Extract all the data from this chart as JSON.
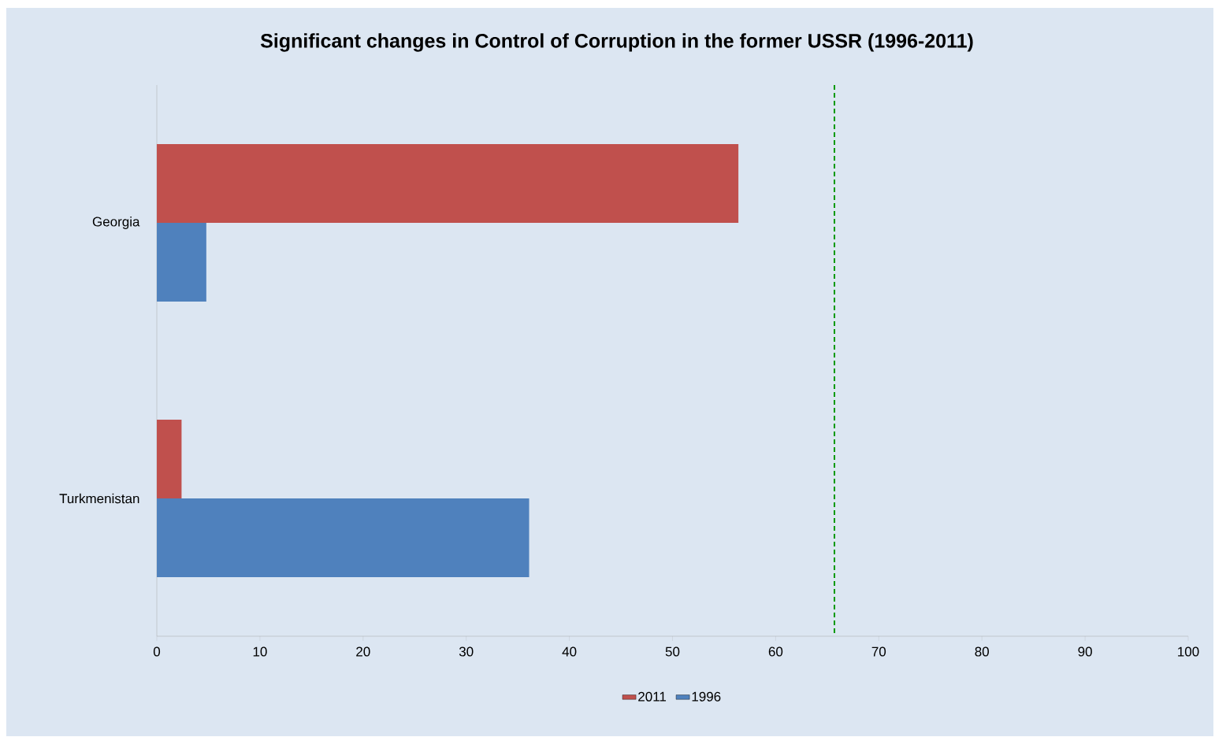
{
  "chart_data": {
    "type": "bar",
    "orientation": "horizontal",
    "title": "Significant changes in Control of Corruption in the former USSR (1996-2011)",
    "categories": [
      "Georgia",
      "Turkmenistan"
    ],
    "series": [
      {
        "name": "2011",
        "color": "#c0504d",
        "values": [
          56.4,
          2.4
        ]
      },
      {
        "name": "1996",
        "color": "#4f81bd",
        "values": [
          4.8,
          36.1
        ]
      }
    ],
    "xlim": [
      0,
      100
    ],
    "xticks": [
      0,
      10,
      20,
      30,
      40,
      50,
      60,
      70,
      80,
      90,
      100
    ],
    "ref_lines": [
      {
        "axis": "x",
        "value": 65.7,
        "color": "#009900",
        "line_style": "dashed"
      }
    ],
    "legend": "bottom",
    "grid": false
  }
}
